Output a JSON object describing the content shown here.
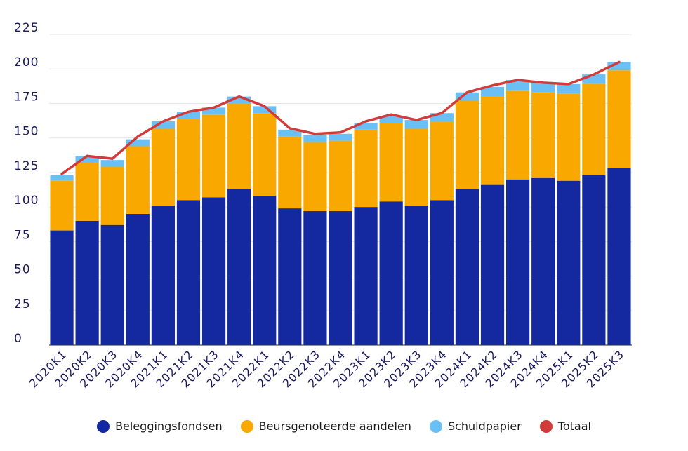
{
  "chart_data": {
    "type": "bar",
    "stacked": true,
    "title": "",
    "xlabel": "",
    "ylabel": "",
    "ylim": [
      0,
      225
    ],
    "yticks": [
      "0",
      "25",
      "50",
      "75",
      "100",
      "125",
      "150",
      "175",
      "200",
      "225"
    ],
    "grid": true,
    "legend_position": "bottom",
    "categories": [
      "2020K1",
      "2020K2",
      "2020K3",
      "2020K4",
      "2021K1",
      "2021K2",
      "2021K3",
      "2021K4",
      "2022K1",
      "2022K2",
      "2022K3",
      "2022K4",
      "2023K1",
      "2023K2",
      "2023K3",
      "2023K4",
      "2024K1",
      "2024K2",
      "2024K3",
      "2024K4",
      "2025K1",
      "2025K2",
      "2025K3"
    ],
    "series": [
      {
        "name": "Beleggingsfondsen",
        "color": "#1428a0",
        "values": [
          83,
          90,
          87,
          95,
          101,
          105,
          107,
          113,
          108,
          99,
          97,
          97,
          100,
          104,
          101,
          105,
          113,
          116,
          120,
          121,
          119,
          123,
          128
        ]
      },
      {
        "name": "Beursgenoteerde aandelen",
        "color": "#f9a800",
        "values": [
          36,
          42,
          42,
          49,
          56,
          59,
          60,
          62,
          60,
          52,
          50,
          51,
          56,
          57,
          56,
          57,
          64,
          64,
          64,
          62,
          63,
          66,
          71
        ]
      },
      {
        "name": "Schuldpapier",
        "color": "#6ac0f4",
        "values": [
          4,
          5,
          5,
          5,
          5,
          5,
          5,
          5,
          5,
          5,
          5,
          5,
          5,
          5,
          6,
          6,
          6,
          7,
          8,
          7,
          7,
          7,
          6
        ]
      }
    ],
    "line": {
      "name": "Totaal",
      "color": "#d13c3a",
      "values": [
        124,
        137,
        135,
        151,
        162,
        169,
        172,
        180,
        173,
        157,
        153,
        154,
        162,
        167,
        163,
        168,
        183,
        188,
        192,
        190,
        189,
        196,
        205
      ]
    }
  },
  "legend": {
    "items": [
      {
        "label": "Beleggingsfondsen",
        "color": "#1428a0"
      },
      {
        "label": "Beursgenoteerde aandelen",
        "color": "#f9a800"
      },
      {
        "label": "Schuldpapier",
        "color": "#6ac0f4"
      },
      {
        "label": "Totaal",
        "color": "#d13c3a"
      }
    ]
  }
}
